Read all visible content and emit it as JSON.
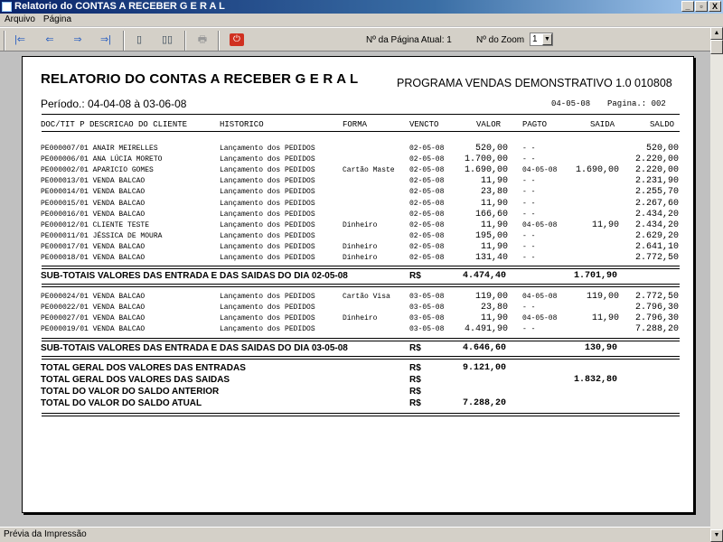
{
  "window": {
    "title": "Relatorio do CONTAS A RECEBER G E R A L",
    "controls": [
      "_",
      "▫",
      "X"
    ]
  },
  "menu": [
    "Arquivo",
    "Página"
  ],
  "toolbar": {
    "buttons": [
      {
        "name": "first-page",
        "icon": "first-page-icon",
        "glyph": "|⇐"
      },
      {
        "name": "prev-page",
        "icon": "prev-page-icon",
        "glyph": "⇐"
      },
      {
        "name": "next-page",
        "icon": "next-page-icon",
        "glyph": "⇒"
      },
      {
        "name": "last-page",
        "icon": "last-page-icon",
        "glyph": "⇒|"
      },
      {
        "name": "single-page",
        "icon": "page-icon",
        "glyph": "▯"
      },
      {
        "name": "two-pages",
        "icon": "two-pages-icon",
        "glyph": "▯▯"
      },
      {
        "name": "print",
        "icon": "printer-icon",
        "glyph": "🖶"
      },
      {
        "name": "close",
        "icon": "power-icon",
        "glyph": "⏻"
      }
    ],
    "page_label": "Nº da Página Atual: 1",
    "zoom_label": "Nº do Zoom",
    "zoom_value": "1"
  },
  "report": {
    "title": "RELATORIO DO CONTAS A RECEBER G E R A L",
    "program": "PROGRAMA VENDAS DEMONSTRATIVO 1.0 010808",
    "period": "Período.: 04-04-08 à 03-06-08",
    "date": "04-05-08",
    "page": "Pagina.: 002",
    "columns": [
      "DOC/TIT P DESCRICAO DO CLIENTE",
      "HISTORICO",
      "FORMA",
      "VENCTO",
      "VALOR",
      "PAGTO",
      "SAIDA",
      "SALDO"
    ],
    "groups": [
      {
        "rows": [
          [
            "PE000007/01 ANAIR MEIRELLES",
            "Lançamento dos PEDIDOS",
            "",
            "02-05-08",
            "520,00",
            "- -",
            "",
            "520,00"
          ],
          [
            "PE000006/01 ANA LÚCIA MORETO",
            "Lançamento dos PEDIDOS",
            "",
            "02-05-08",
            "1.700,00",
            "- -",
            "",
            "2.220,00"
          ],
          [
            "PE000002/01 APARICIO GOMES",
            "Lançamento dos PEDIDOS",
            "Cartão Maste",
            "02-05-08",
            "1.690,00",
            "04-05-08",
            "1.690,00",
            "2.220,00"
          ],
          [
            "PE000013/01 VENDA BALCAO",
            "Lançamento dos PEDIDOS",
            "",
            "02-05-08",
            "11,90",
            "- -",
            "",
            "2.231,90"
          ],
          [
            "PE000014/01 VENDA BALCAO",
            "Lançamento dos PEDIDOS",
            "",
            "02-05-08",
            "23,80",
            "- -",
            "",
            "2.255,70"
          ],
          [
            "PE000015/01 VENDA BALCAO",
            "Lançamento dos PEDIDOS",
            "",
            "02-05-08",
            "11,90",
            "- -",
            "",
            "2.267,60"
          ],
          [
            "PE000016/01 VENDA BALCAO",
            "Lançamento dos PEDIDOS",
            "",
            "02-05-08",
            "166,60",
            "- -",
            "",
            "2.434,20"
          ],
          [
            "PE000012/01 CLIENTE TESTE",
            "Lançamento dos PEDIDOS",
            "Dinheiro",
            "02-05-08",
            "11,90",
            "04-05-08",
            "11,90",
            "2.434,20"
          ],
          [
            "PE000011/01 JÉSSICA DE MOURA",
            "Lançamento dos PEDIDOS",
            "",
            "02-05-08",
            "195,00",
            "- -",
            "",
            "2.629,20"
          ],
          [
            "PE000017/01 VENDA BALCAO",
            "Lançamento dos PEDIDOS",
            "Dinheiro",
            "02-05-08",
            "11,90",
            "- -",
            "",
            "2.641,10"
          ],
          [
            "PE000018/01 VENDA BALCAO",
            "Lançamento dos PEDIDOS",
            "Dinheiro",
            "02-05-08",
            "131,40",
            "- -",
            "",
            "2.772,50"
          ]
        ],
        "subtotal": {
          "label": "SUB-TOTAIS VALORES DAS ENTRADA E DAS SAIDAS DO DIA 02-05-08",
          "currency": "R$",
          "entradas": "4.474,40",
          "saidas": "1.701,90"
        }
      },
      {
        "rows": [
          [
            "PE000024/01 VENDA BALCAO",
            "Lançamento dos PEDIDOS",
            "Cartão Visa",
            "03-05-08",
            "119,00",
            "04-05-08",
            "119,00",
            "2.772,50"
          ],
          [
            "PE000022/01 VENDA BALCAO",
            "Lançamento dos PEDIDOS",
            "",
            "03-05-08",
            "23,80",
            "- -",
            "",
            "2.796,30"
          ],
          [
            "PE000027/01 VENDA BALCAO",
            "Lançamento dos PEDIDOS",
            "Dinheiro",
            "03-05-08",
            "11,90",
            "04-05-08",
            "11,90",
            "2.796,30"
          ],
          [
            "PE000019/01 VENDA BALCAO",
            "Lançamento dos PEDIDOS",
            "",
            "03-05-08",
            "4.491,90",
            "- -",
            "",
            "7.288,20"
          ]
        ],
        "subtotal": {
          "label": "SUB-TOTAIS VALORES DAS ENTRADA E DAS SAIDAS DO DIA 03-05-08",
          "currency": "R$",
          "entradas": "4.646,60",
          "saidas": "130,90"
        }
      }
    ],
    "totals": [
      {
        "label": "TOTAL GERAL DOS VALORES DAS ENTRADAS",
        "currency": "R$",
        "entradas": "9.121,00",
        "saidas": ""
      },
      {
        "label": "TOTAL GERAL DOS VALORES DAS SAIDAS",
        "currency": "R$",
        "entradas": "",
        "saidas": "1.832,80"
      },
      {
        "label": "TOTAL DO VALOR DO SALDO ANTERIOR",
        "currency": "R$",
        "entradas": "",
        "saidas": ""
      },
      {
        "label": "TOTAL DO VALOR DO SALDO ATUAL",
        "currency": "R$",
        "entradas": "7.288,20",
        "saidas": ""
      }
    ]
  },
  "status": "Prévia da Impressão"
}
